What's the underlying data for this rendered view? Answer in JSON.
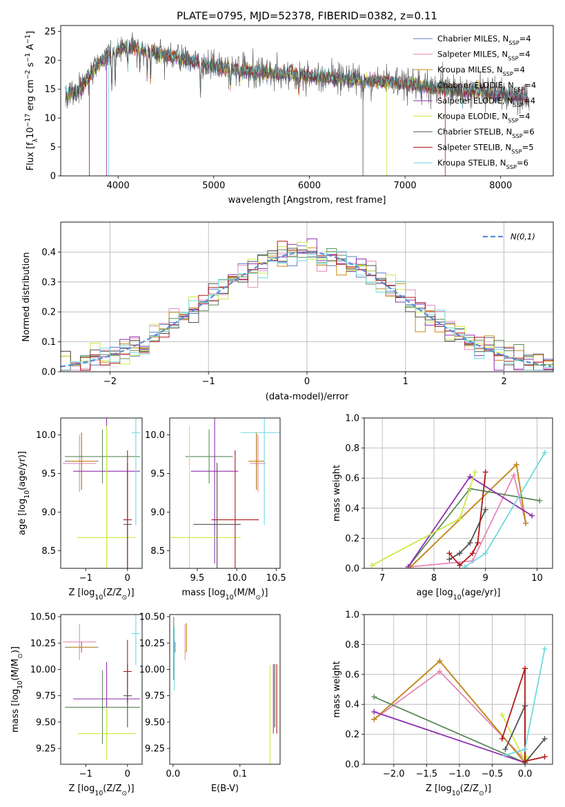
{
  "title": "PLATE=0795, MJD=52378, FIBERID=0382, z=0.11",
  "models": [
    {
      "name": "Chabrier MILES",
      "nssp": "4",
      "color": "#5a78c8"
    },
    {
      "name": "Salpeter MILES",
      "nssp": "4",
      "color": "#e688b8"
    },
    {
      "name": "Kroupa MILES",
      "nssp": "4",
      "color": "#c88a10"
    },
    {
      "name": "Chabrier ELODIE",
      "nssp": "4",
      "color": "#5a8a5a"
    },
    {
      "name": "Salpeter ELODIE",
      "nssp": "4",
      "color": "#8e2fae"
    },
    {
      "name": "Kroupa ELODIE",
      "nssp": "4",
      "color": "#ccea40"
    },
    {
      "name": "Chabrier STELIB",
      "nssp": "6",
      "color": "#505050"
    },
    {
      "name": "Salpeter STELIB",
      "nssp": "5",
      "color": "#b01818"
    },
    {
      "name": "Kroupa STELIB",
      "nssp": "6",
      "color": "#70d8e0"
    }
  ],
  "chart_data": [
    {
      "id": "spectrum",
      "type": "line",
      "xlabel": "wavelength [Angstrom, rest frame]",
      "ylabel": "Flux [f_λ 10^-17 erg cm^-2 s^-1 A^-1]",
      "xlim": [
        3400,
        8550
      ],
      "ylim": [
        0,
        26
      ],
      "xticks": [
        4000,
        5000,
        6000,
        7000,
        8000
      ],
      "yticks": [
        0,
        5,
        10,
        15,
        20,
        25
      ],
      "legend": "top-right",
      "continuum": {
        "x": [
          3450,
          3600,
          3800,
          3950,
          4100,
          4300,
          4600,
          5000,
          5400,
          5800,
          6200,
          6600,
          7000,
          7400,
          7800,
          8300
        ],
        "y": [
          14,
          15,
          19.5,
          21.5,
          22.5,
          21.5,
          20.5,
          19,
          18,
          17.5,
          17,
          16.5,
          16,
          15,
          14.5,
          13.5
        ]
      }
    },
    {
      "id": "residuals",
      "type": "histogram",
      "xlabel": "(data-model)/error",
      "ylabel": "Normed distribution",
      "xlim": [
        -2.5,
        2.5
      ],
      "ylim": [
        0,
        0.5
      ],
      "xticks": [
        -2,
        -1,
        0,
        1,
        2
      ],
      "yticks": [
        0.0,
        0.1,
        0.2,
        0.3,
        0.4
      ],
      "grid": true,
      "bin_width": 0.1,
      "legend": "top-right",
      "reference": {
        "label": "N(0,1)",
        "mean": 0,
        "sigma": 1,
        "color": "#5a8ad8"
      }
    },
    {
      "id": "z-age",
      "type": "errorbar",
      "xlabel": "Z [log10(Z/Z⊙)]",
      "ylabel": "age [log10(age/yr)]",
      "xlim": [
        -1.6,
        0.35
      ],
      "ylim": [
        8.27,
        10.22
      ],
      "xticks": [
        -1,
        0
      ],
      "yticks": [
        8.5,
        9.0,
        9.5,
        10.0
      ],
      "points": [
        {
          "model": 0,
          "x": -1.1,
          "xerr": 0.4,
          "y": 9.66,
          "yerr": 0.37
        },
        {
          "model": 1,
          "x": -1.15,
          "xerr": 0.4,
          "y": 9.63,
          "yerr": 0.37
        },
        {
          "model": 2,
          "x": -1.1,
          "xerr": 0.35,
          "y": 9.66,
          "yerr": 0.37
        },
        {
          "model": 3,
          "x": -0.6,
          "xerr": 0.9,
          "y": 9.72,
          "yerr": 0.35
        },
        {
          "model": 4,
          "x": -0.5,
          "xerr": 0.8,
          "y": 9.53,
          "yerr": 1.2
        },
        {
          "model": 5,
          "x": -0.5,
          "xerr": 0.7,
          "y": 8.67,
          "yerr": 1.45
        },
        {
          "model": 6,
          "x": 0.0,
          "xerr": 0.1,
          "y": 8.84,
          "yerr": 0.8
        },
        {
          "model": 7,
          "x": 0.0,
          "xerr": 0.1,
          "y": 8.9,
          "yerr": 0.9
        },
        {
          "model": 8,
          "x": 0.2,
          "xerr": 0.1,
          "y": 10.03,
          "yerr": 1.2
        }
      ]
    },
    {
      "id": "mass-age",
      "type": "errorbar",
      "xlabel": "mass [log10(M/M⊙)]",
      "ylabel": "",
      "xlim": [
        9.15,
        10.55
      ],
      "ylim": [
        8.27,
        10.22
      ],
      "xticks": [
        9.5,
        10.0,
        10.5
      ],
      "yticks": [
        8.5,
        9.0,
        9.5,
        10.0
      ],
      "points": [
        {
          "model": 0,
          "x": 10.25,
          "xerr": 0.1,
          "y": 9.66,
          "yerr": 0.37
        },
        {
          "model": 1,
          "x": 10.27,
          "xerr": 0.1,
          "y": 9.63,
          "yerr": 0.37
        },
        {
          "model": 2,
          "x": 10.25,
          "xerr": 0.1,
          "y": 9.66,
          "yerr": 0.37
        },
        {
          "model": 3,
          "x": 9.65,
          "xerr": 0.3,
          "y": 9.72,
          "yerr": 0.35
        },
        {
          "model": 4,
          "x": 9.72,
          "xerr": 0.3,
          "y": 9.53,
          "yerr": 1.2
        },
        {
          "model": 5,
          "x": 9.4,
          "xerr": 0.65,
          "y": 8.67,
          "yerr": 1.45
        },
        {
          "model": 6,
          "x": 9.75,
          "xerr": 0.3,
          "y": 8.84,
          "yerr": 0.8
        },
        {
          "model": 7,
          "x": 9.98,
          "xerr": 0.3,
          "y": 8.9,
          "yerr": 0.9
        },
        {
          "model": 8,
          "x": 10.35,
          "xerr": 0.3,
          "y": 10.03,
          "yerr": 1.2
        }
      ]
    },
    {
      "id": "age-weight",
      "type": "line",
      "xlabel": "age [log10(age/yr)]",
      "ylabel": "mass weight",
      "xlim": [
        6.65,
        10.3
      ],
      "ylim": [
        0,
        1.0
      ],
      "xticks": [
        7,
        8,
        9,
        10
      ],
      "yticks": [
        0.0,
        0.2,
        0.4,
        0.6,
        0.8,
        1.0
      ],
      "grid": true,
      "series": [
        {
          "model": 0,
          "x": [
            7.55,
            9.6,
            9.78
          ],
          "y": [
            0.01,
            0.69,
            0.3
          ]
        },
        {
          "model": 1,
          "x": [
            7.55,
            8.75,
            9.55,
            9.78
          ],
          "y": [
            0.01,
            0.05,
            0.62,
            0.3
          ]
        },
        {
          "model": 2,
          "x": [
            7.55,
            9.6,
            9.78
          ],
          "y": [
            0.01,
            0.69,
            0.3
          ]
        },
        {
          "model": 3,
          "x": [
            7.5,
            8.7,
            10.05
          ],
          "y": [
            0.01,
            0.53,
            0.45
          ]
        },
        {
          "model": 4,
          "x": [
            7.5,
            8.7,
            9.9
          ],
          "y": [
            0.01,
            0.61,
            0.35
          ]
        },
        {
          "model": 5,
          "x": [
            6.8,
            8.5,
            8.8
          ],
          "y": [
            0.02,
            0.33,
            0.64
          ]
        },
        {
          "model": 6,
          "x": [
            8.3,
            8.5,
            8.7,
            9.0
          ],
          "y": [
            0.06,
            0.1,
            0.17,
            0.39
          ]
        },
        {
          "model": 7,
          "x": [
            8.3,
            8.5,
            8.75,
            8.85,
            9.0
          ],
          "y": [
            0.1,
            0.02,
            0.1,
            0.17,
            0.64
          ]
        },
        {
          "model": 8,
          "x": [
            8.6,
            9.0,
            10.15
          ],
          "y": [
            0.01,
            0.1,
            0.77
          ]
        }
      ]
    },
    {
      "id": "z-mass",
      "type": "errorbar",
      "xlabel": "Z [log10(Z/Z⊙)]",
      "ylabel": "mass [log10(M/M⊙)]",
      "xlim": [
        -1.6,
        0.35
      ],
      "ylim": [
        9.1,
        10.52
      ],
      "xticks": [
        -1,
        0
      ],
      "yticks": [
        9.25,
        9.5,
        9.75,
        10.0,
        10.25,
        10.5
      ],
      "points": [
        {
          "model": 0,
          "x": -1.1,
          "xerr": 0.4,
          "y": 10.21,
          "yerr": 0.05
        },
        {
          "model": 1,
          "x": -1.15,
          "xerr": 0.4,
          "y": 10.26,
          "yerr": 0.17
        },
        {
          "model": 2,
          "x": -1.1,
          "xerr": 0.35,
          "y": 10.21,
          "yerr": 0.05
        },
        {
          "model": 3,
          "x": -0.6,
          "xerr": 0.9,
          "y": 9.64,
          "yerr": 0.35
        },
        {
          "model": 4,
          "x": -0.5,
          "xerr": 0.8,
          "y": 9.72,
          "yerr": 0.35
        },
        {
          "model": 5,
          "x": -0.5,
          "xerr": 0.7,
          "y": 9.39,
          "yerr": 0.25
        },
        {
          "model": 6,
          "x": 0.0,
          "xerr": 0.1,
          "y": 9.75,
          "yerr": 0.3
        },
        {
          "model": 7,
          "x": 0.0,
          "xerr": 0.1,
          "y": 9.98,
          "yerr": 0.3
        },
        {
          "model": 8,
          "x": 0.2,
          "xerr": 0.1,
          "y": 10.34,
          "yerr": 0.3
        }
      ]
    },
    {
      "id": "ebv-mass",
      "type": "errorbar",
      "xlabel": "E(B-V)",
      "ylabel": "",
      "xlim": [
        -0.005,
        0.16
      ],
      "ylim": [
        9.1,
        10.52
      ],
      "xticks": [
        0.0,
        0.1
      ],
      "yticks": [
        9.25,
        9.5,
        9.75,
        10.0,
        10.25,
        10.5
      ],
      "points": [
        {
          "model": 0,
          "x": 0.003,
          "xerr": 0,
          "y": 10.21,
          "yerr": 0.05
        },
        {
          "model": 1,
          "x": 0.018,
          "xerr": 0,
          "y": 10.26,
          "yerr": 0.17
        },
        {
          "model": 2,
          "x": 0.02,
          "xerr": 0,
          "y": 10.3,
          "yerr": 0.14
        },
        {
          "model": 3,
          "x": 0.001,
          "xerr": 0,
          "y": 10.2,
          "yerr": 0.3
        },
        {
          "model": 4,
          "x": 0.15,
          "xerr": 0,
          "y": 9.72,
          "yerr": 0.33
        },
        {
          "model": 5,
          "x": 0.145,
          "xerr": 0,
          "y": 9.39,
          "yerr": 0.65
        },
        {
          "model": 6,
          "x": 0.152,
          "xerr": 0,
          "y": 9.75,
          "yerr": 0.3
        },
        {
          "model": 7,
          "x": 0.155,
          "xerr": 0,
          "y": 9.72,
          "yerr": 0.33
        },
        {
          "model": 8,
          "x": 0.002,
          "xerr": 0,
          "y": 10.1,
          "yerr": 0.3
        }
      ]
    },
    {
      "id": "z-weight",
      "type": "line",
      "xlabel": "Z [log10(Z/Z⊙)]",
      "ylabel": "mass weight",
      "xlim": [
        -2.45,
        0.42
      ],
      "ylim": [
        0,
        1.0
      ],
      "xticks": [
        -2.0,
        -1.5,
        -1.0,
        -0.5,
        0.0
      ],
      "yticks": [
        0.0,
        0.2,
        0.4,
        0.6,
        0.8,
        1.0
      ],
      "grid": true,
      "series": [
        {
          "model": 0,
          "x": [
            -2.3,
            -1.3,
            0.0
          ],
          "y": [
            0.3,
            0.69,
            0.01
          ]
        },
        {
          "model": 1,
          "x": [
            -2.3,
            -1.3,
            0.0
          ],
          "y": [
            0.3,
            0.62,
            0.03
          ]
        },
        {
          "model": 2,
          "x": [
            -2.3,
            -1.3,
            0.0
          ],
          "y": [
            0.3,
            0.69,
            0.01
          ]
        },
        {
          "model": 3,
          "x": [
            -2.3,
            0.0
          ],
          "y": [
            0.45,
            0.01
          ]
        },
        {
          "model": 4,
          "x": [
            -2.3,
            0.0
          ],
          "y": [
            0.35,
            0.01
          ]
        },
        {
          "model": 5,
          "x": [
            -0.35,
            0.0,
            0.02
          ],
          "y": [
            0.33,
            0.02,
            0.05
          ]
        },
        {
          "model": 6,
          "x": [
            -0.3,
            0.0,
            0.0,
            0.3
          ],
          "y": [
            0.1,
            0.39,
            0.01,
            0.17
          ]
        },
        {
          "model": 7,
          "x": [
            -0.35,
            0.0,
            0.0,
            0.3
          ],
          "y": [
            0.17,
            0.64,
            0.02,
            0.05
          ]
        },
        {
          "model": 8,
          "x": [
            -0.3,
            0.0,
            0.3
          ],
          "y": [
            0.06,
            0.1,
            0.77
          ]
        }
      ]
    }
  ]
}
